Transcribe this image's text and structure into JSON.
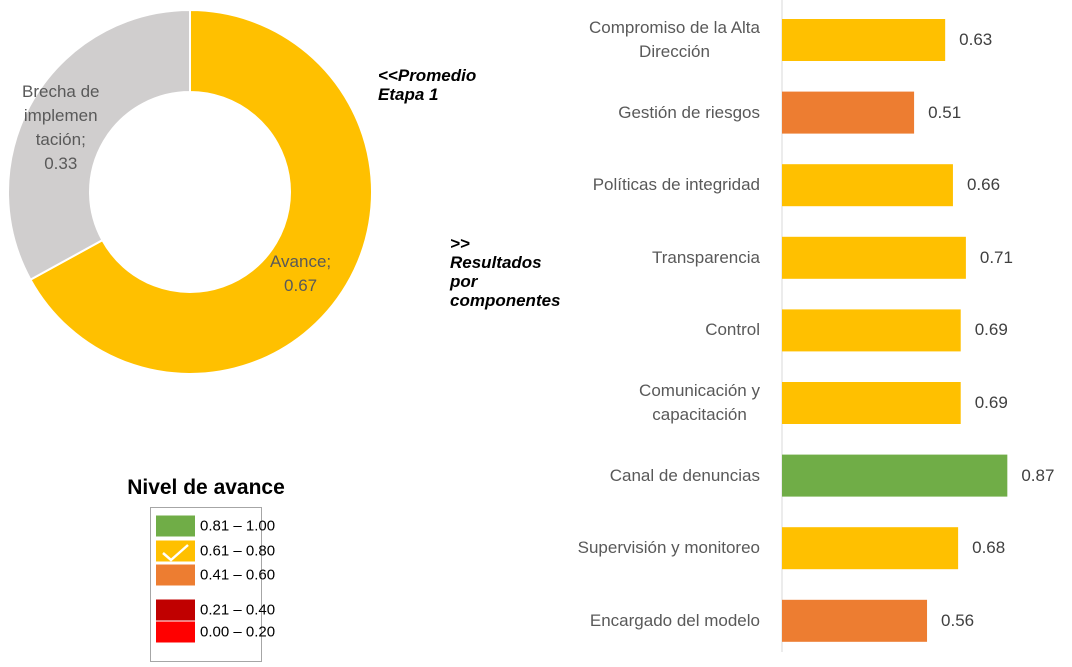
{
  "chart_data": [
    {
      "type": "donut",
      "categories": [
        "Avance;",
        "Brecha de\nimplemen\ntación;"
      ],
      "values": [
        0.67,
        0.33
      ],
      "colors": [
        "#FFC000",
        "#D0CECE"
      ]
    },
    {
      "type": "hbar",
      "categories": [
        "Compromiso de la Alta\nDirección",
        "Gestión de riesgos",
        "Políticas de integridad",
        "Transparencia",
        "Control",
        "Comunicación y\ncapacitación",
        "Canal de denuncias",
        "Supervisión y monitoreo",
        "Encargado del modelo"
      ],
      "values": [
        0.63,
        0.51,
        0.66,
        0.71,
        0.69,
        0.69,
        0.87,
        0.68,
        0.56
      ],
      "colors": [
        "#FFC000",
        "#ED7D31",
        "#FFC000",
        "#FFC000",
        "#FFC000",
        "#FFC000",
        "#70AD47",
        "#FFC000",
        "#ED7D31"
      ],
      "xlim": [
        0,
        1
      ]
    }
  ],
  "annotations": [
    "<<Promedio\nEtapa 1",
    ">>\nResultados\npor\ncomponentes"
  ],
  "legend": {
    "title": "Nivel de avance",
    "checked": 1,
    "items": [
      {
        "label": "0.81 – 1.00",
        "color": "#70AD47"
      },
      {
        "label": "0.61 – 0.80",
        "color": "#FFC000"
      },
      {
        "label": "0.41 – 0.60",
        "color": "#ED7D31"
      },
      {
        "label": "0.21 – 0.40",
        "color": "#C00000"
      },
      {
        "label": "0.00 – 0.20",
        "color": "#FF0000"
      }
    ]
  }
}
